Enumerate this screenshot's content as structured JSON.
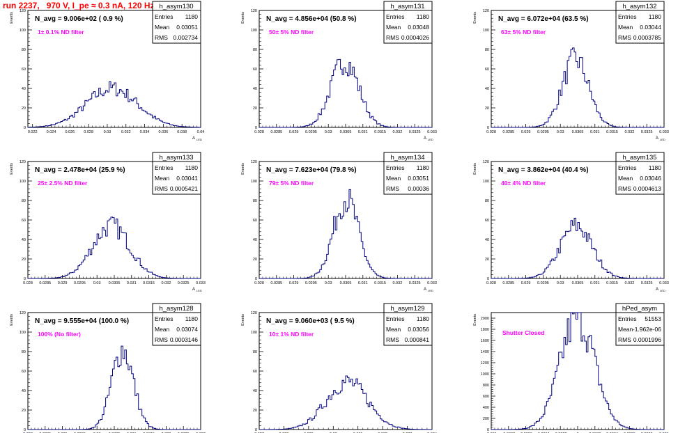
{
  "run_title": "run 2237,   970 V, I_pe ≈ 0.3 nA, 120 Hz",
  "stats_labels": {
    "entries": "Entries",
    "mean": "Mean",
    "rms": "RMS"
  },
  "ylabel": "Events",
  "xlabel_main": "A",
  "xlabel_sub": "LED",
  "colors": {
    "histogram": "#000080",
    "note": "#ff00ff",
    "title": "#ff0000",
    "frame": "#000000"
  },
  "chart_data": [
    {
      "type": "bar",
      "name": "h_asym130",
      "navg": "N_avg = 9.006e+02 ( 0.9 %)",
      "note": "1± 0.1% ND filter",
      "entries": "1180",
      "mean": "0.03051",
      "rms": "0.002734",
      "xlim": [
        0.0215,
        0.04
      ],
      "ylim": [
        0,
        120
      ],
      "xticks": [
        "0.022",
        "0.024",
        "0.026",
        "0.028",
        "0.03",
        "0.032",
        "0.034",
        "0.036",
        "0.038",
        "0.04"
      ],
      "yticks": [
        "0",
        "20",
        "40",
        "60",
        "80",
        "100",
        "120"
      ],
      "peak": 40
    },
    {
      "type": "bar",
      "name": "h_asym131",
      "navg": "N_avg = 4.856e+04 (50.8 %)",
      "note": "50± 5% ND filter",
      "entries": "1180",
      "mean": "0.03048",
      "rms": "0.0004026",
      "xlim": [
        0.028,
        0.033
      ],
      "ylim": [
        0,
        120
      ],
      "xticks": [
        "0.028",
        "0.0285",
        "0.029",
        "0.0295",
        "0.03",
        "0.0305",
        "0.031",
        "0.0315",
        "0.032",
        "0.0325",
        "0.033"
      ],
      "yticks": [
        "0",
        "20",
        "40",
        "60",
        "80",
        "100",
        "120"
      ],
      "peak": 68
    },
    {
      "type": "bar",
      "name": "h_asym132",
      "navg": "N_avg = 6.072e+04 (63.5 %)",
      "note": "63± 5% ND filter",
      "entries": "1180",
      "mean": "0.03044",
      "rms": "0.0003785",
      "xlim": [
        0.028,
        0.033
      ],
      "ylim": [
        0,
        120
      ],
      "xticks": [
        "0.028",
        "0.0285",
        "0.029",
        "0.0295",
        "0.03",
        "0.0305",
        "0.031",
        "0.0315",
        "0.032",
        "0.0325",
        "0.033"
      ],
      "yticks": [
        "0",
        "20",
        "40",
        "60",
        "80",
        "100",
        "120"
      ],
      "peak": 70
    },
    {
      "type": "bar",
      "name": "h_asym133",
      "navg": "N_avg = 2.478e+04 (25.9 %)",
      "note": "25± 2.5% ND filter",
      "entries": "1180",
      "mean": "0.03041",
      "rms": "0.0005421",
      "xlim": [
        0.028,
        0.033
      ],
      "ylim": [
        0,
        120
      ],
      "xticks": [
        "0.028",
        "0.0285",
        "0.029",
        "0.0295",
        "0.03",
        "0.0305",
        "0.031",
        "0.0315",
        "0.032",
        "0.0325",
        "0.033"
      ],
      "yticks": [
        "0",
        "20",
        "40",
        "60",
        "80",
        "100",
        "120"
      ],
      "peak": 54
    },
    {
      "type": "bar",
      "name": "h_asym134",
      "navg": "N_avg = 7.623e+04 (79.8 %)",
      "note": "79± 5% ND filter",
      "entries": "1180",
      "mean": "0.03051",
      "rms": "0.00036",
      "xlim": [
        0.028,
        0.033
      ],
      "ylim": [
        0,
        120
      ],
      "xticks": [
        "0.028",
        "0.0285",
        "0.029",
        "0.0295",
        "0.03",
        "0.0305",
        "0.031",
        "0.0315",
        "0.032",
        "0.0325",
        "0.033"
      ],
      "yticks": [
        "0",
        "20",
        "40",
        "60",
        "80",
        "100",
        "120"
      ],
      "peak": 82
    },
    {
      "type": "bar",
      "name": "h_asym135",
      "navg": "N_avg = 3.862e+04 (40.4 %)",
      "note": "40± 4% ND filter",
      "entries": "1180",
      "mean": "0.03046",
      "rms": "0.0004613",
      "xlim": [
        0.028,
        0.033
      ],
      "ylim": [
        0,
        120
      ],
      "xticks": [
        "0.028",
        "0.0285",
        "0.029",
        "0.0295",
        "0.03",
        "0.0305",
        "0.031",
        "0.0315",
        "0.032",
        "0.0325",
        "0.033"
      ],
      "yticks": [
        "0",
        "20",
        "40",
        "60",
        "80",
        "100",
        "120"
      ],
      "peak": 54
    },
    {
      "type": "bar",
      "name": "h_asym128",
      "navg": "N_avg = 9.555e+04 (100.0 %)",
      "note": "100% (No filter)",
      "entries": "1180",
      "mean": "0.03074",
      "rms": "0.0003146",
      "xlim": [
        0.028,
        0.033
      ],
      "ylim": [
        0,
        120
      ],
      "xticks": [
        "0.028",
        "0.0285",
        "0.029",
        "0.0295",
        "0.03",
        "0.0305",
        "0.031",
        "0.0315",
        "0.032",
        "0.0325",
        "0.033"
      ],
      "yticks": [
        "0",
        "20",
        "40",
        "60",
        "80",
        "100",
        "120"
      ],
      "peak": 82
    },
    {
      "type": "bar",
      "name": "h_asym129",
      "navg": "N_avg = 9.060e+03 ( 9.5 %)",
      "note": "10± 1% ND filter",
      "entries": "1180",
      "mean": "0.03056",
      "rms": "0.000841",
      "xlim": [
        0.027,
        0.034
      ],
      "ylim": [
        0,
        120
      ],
      "xticks": [
        "0.027",
        "0.028",
        "0.029",
        "0.03",
        "0.031",
        "0.032",
        "0.033",
        "0.034"
      ],
      "yticks": [
        "0",
        "20",
        "40",
        "60",
        "80",
        "100",
        "120"
      ],
      "peak": 49
    },
    {
      "type": "bar",
      "name": "hPed_asym",
      "navg": "",
      "note": "Shutter Closed",
      "entries": "51553",
      "mean": "-1.962e-06",
      "rms": "0.0001996",
      "xlim": [
        -0.001,
        0.001
      ],
      "ylim": [
        0,
        2100
      ],
      "xticks": [
        "-0.001",
        "-0.0008",
        "-0.0006",
        "-0.0004",
        "-0.0002",
        "0",
        "0.0002",
        "0.0004",
        "0.0006",
        "0.0008",
        "0.001"
      ],
      "yticks": [
        "0",
        "200",
        "400",
        "600",
        "800",
        "1000",
        "1200",
        "1400",
        "1600",
        "1800",
        "2000"
      ],
      "peak": 2010
    }
  ]
}
